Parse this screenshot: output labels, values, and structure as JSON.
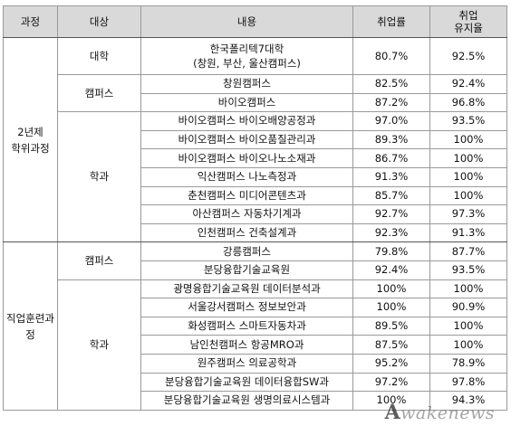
{
  "headers": {
    "course": "과정",
    "target": "대상",
    "content": "내용",
    "employment_rate": "취업률",
    "retention_rate_line1": "취업",
    "retention_rate_line2": "유지율"
  },
  "groups": [
    {
      "course": "2년제",
      "course2": "학위과정"
    },
    {
      "course": "직업훈련과",
      "course2": "정"
    }
  ],
  "targets": {
    "univ": "대학",
    "campus1": "캠퍼스",
    "dept1": "학과",
    "campus2": "캠퍼스",
    "dept2": "학과"
  },
  "rows": [
    {
      "content": "한국폴리텍7대학",
      "content2": "(창원, 부산, 울산캠퍼스)",
      "emp": "80.7%",
      "ret": "92.5%"
    },
    {
      "content": "창원캠퍼스",
      "emp": "82.5%",
      "ret": "92.4%"
    },
    {
      "content": "바이오캠퍼스",
      "emp": "87.2%",
      "ret": "96.8%"
    },
    {
      "content": "바이오캠퍼스 바이오배양공정과",
      "emp": "97.0%",
      "ret": "93.5%"
    },
    {
      "content": "바이오캠퍼스 바이오품질관리과",
      "emp": "89.3%",
      "ret": "100%"
    },
    {
      "content": "바이오캠퍼스 바이오나노소재과",
      "emp": "86.7%",
      "ret": "100%"
    },
    {
      "content": "익산캠퍼스 나노측정과",
      "emp": "91.3%",
      "ret": "100%"
    },
    {
      "content": "춘천캠퍼스 미디어콘텐츠과",
      "emp": "85.7%",
      "ret": "100%"
    },
    {
      "content": "아산캠퍼스 자동차기계과",
      "emp": "92.7%",
      "ret": "97.3%"
    },
    {
      "content": "인천캠퍼스 건축설계과",
      "emp": "92.3%",
      "ret": "91.3%"
    },
    {
      "content": "강릉캠퍼스",
      "emp": "79.8%",
      "ret": "87.7%"
    },
    {
      "content": "분당융합기술교육원",
      "emp": "92.4%",
      "ret": "93.5%"
    },
    {
      "content": "광명융합기술교육원 데이터분석과",
      "emp": "100%",
      "ret": "100%"
    },
    {
      "content": "서울강서캠퍼스 정보보안과",
      "emp": "100%",
      "ret": "90.9%"
    },
    {
      "content": "화성캠퍼스 스마트자동차과",
      "emp": "89.5%",
      "ret": "100%"
    },
    {
      "content": "남인천캠퍼스 항공MRO과",
      "emp": "87.5%",
      "ret": "100%"
    },
    {
      "content": "원주캠퍼스 의료공학과",
      "emp": "95.2%",
      "ret": "78.9%"
    },
    {
      "content": "분당융합기술교육원 데이터융합SW과",
      "emp": "97.2%",
      "ret": "97.8%"
    },
    {
      "content": "분당융합기술교육원 생명의료시스템과",
      "emp": "100%",
      "ret": "94.3%"
    }
  ],
  "watermark": {
    "logo": "A",
    "text": "wakenews"
  }
}
